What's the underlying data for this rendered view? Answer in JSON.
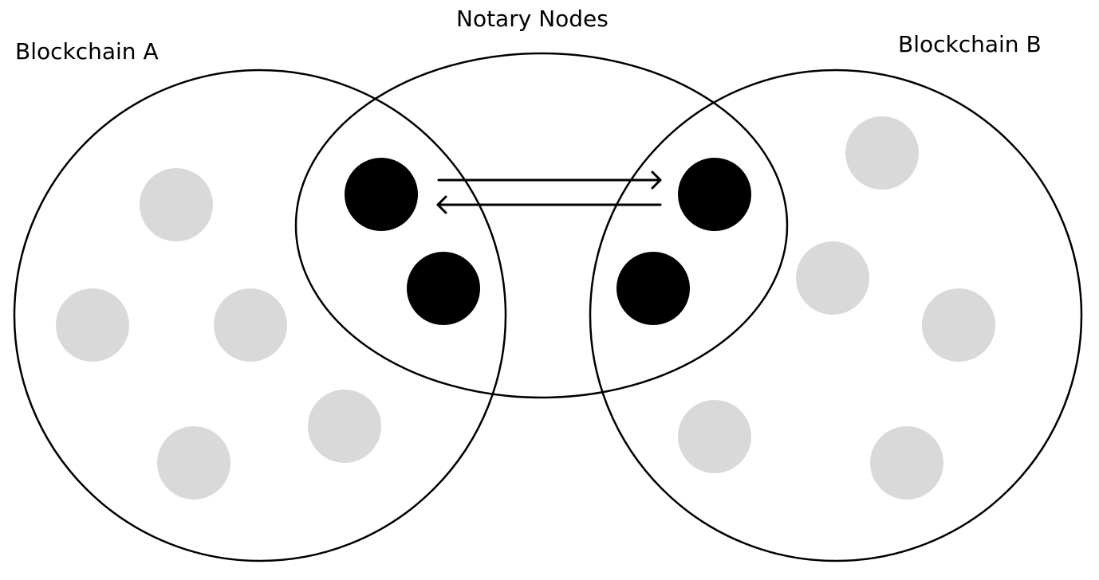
{
  "labels": {
    "blockchain_a": "Blockchain A",
    "notary_nodes": "Notary Nodes",
    "blockchain_b": "Blockchain B"
  },
  "legend_colors": {
    "regular_node": "#d9d9d9",
    "notary_node": "#000000",
    "outline": "#000000",
    "background": "#ffffff"
  },
  "node_counts": {
    "blockchain_a_regular_nodes": 5,
    "blockchain_b_regular_nodes": 5,
    "notary_nodes": 4
  },
  "arrows": [
    {
      "from": "notary-node-a-top",
      "to": "notary-node-b-top",
      "direction": "right"
    },
    {
      "from": "notary-node-b-top",
      "to": "notary-node-a-top",
      "direction": "left"
    }
  ]
}
